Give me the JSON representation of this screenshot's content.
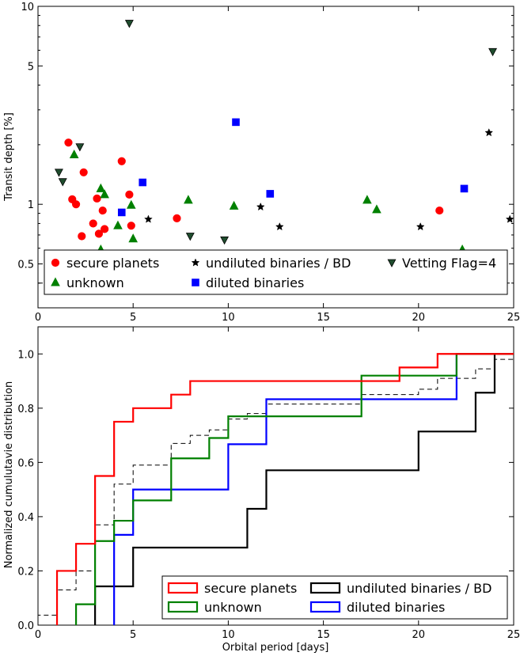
{
  "colors": {
    "secure": "#ff0000",
    "unknown": "#008000",
    "undiluted": "#000000",
    "diluted": "#0000ff",
    "vetting": "#1f4d2e"
  },
  "chart_data": [
    {
      "type": "scatter",
      "ylabel": "Transit depth [%]",
      "xlim": [
        0,
        25
      ],
      "ylim": [
        0.3,
        10
      ],
      "yscale": "log",
      "xticks": [
        0,
        5,
        10,
        15,
        20,
        25
      ],
      "yticks": [
        0.5,
        1,
        5,
        10
      ],
      "ytick_labels": [
        "0.5",
        "1",
        "5",
        "10"
      ],
      "reference_line": {
        "y": 0.4,
        "style": "dashed"
      },
      "legend_position": "bottom",
      "series": [
        {
          "name": "secure planets",
          "marker": "circle",
          "x": [
            1.6,
            1.8,
            1.7,
            2.0,
            2.3,
            2.4,
            2.9,
            3.1,
            3.2,
            3.4,
            3.5,
            4.4,
            4.8,
            4.9,
            4.9,
            5.4,
            7.3,
            8.5,
            19.2,
            21.1
          ],
          "y": [
            2.05,
            1.06,
            0.46,
            1.0,
            0.69,
            1.45,
            0.8,
            1.07,
            0.71,
            0.93,
            0.75,
            1.65,
            1.12,
            0.78,
            0.42,
            0.47,
            0.85,
            0.45,
            0.49,
            0.93
          ]
        },
        {
          "name": "unknown",
          "marker": "triangle-up",
          "x": [
            1.9,
            3.3,
            3.5,
            4.2,
            4.9,
            5.0,
            3.2,
            3.3,
            7.2,
            7.9,
            9.4,
            10.3,
            17.3,
            17.8,
            22.3
          ],
          "y": [
            1.78,
            1.2,
            1.12,
            0.78,
            0.99,
            0.67,
            0.41,
            0.59,
            0.39,
            1.05,
            0.38,
            0.98,
            1.05,
            0.94,
            0.59
          ]
        },
        {
          "name": "undiluted binaries / BD",
          "marker": "star",
          "x": [
            3.7,
            5.8,
            11.7,
            12.7,
            20.1,
            23.7,
            24.8
          ],
          "y": [
            0.39,
            0.84,
            0.97,
            0.77,
            0.77,
            2.3,
            0.84
          ]
        },
        {
          "name": "diluted binaries",
          "marker": "square",
          "x": [
            4.4,
            4.5,
            5.5,
            10.4,
            12.2,
            22.4
          ],
          "y": [
            0.91,
            0.44,
            1.29,
            2.6,
            1.13,
            1.2
          ]
        },
        {
          "name": "Vetting Flag=4",
          "marker": "triangle-down",
          "x": [
            1.1,
            1.3,
            1.0,
            2.2,
            4.8,
            8.0,
            9.8,
            23.9
          ],
          "y": [
            1.45,
            1.3,
            0.5,
            1.95,
            8.2,
            0.69,
            0.66,
            5.9
          ]
        }
      ]
    },
    {
      "type": "line",
      "step": true,
      "xlabel": "Orbital period [days]",
      "ylabel": "Normalized cumulutavie distribution",
      "xlim": [
        0,
        25
      ],
      "ylim": [
        0,
        1.1
      ],
      "xticks": [
        0,
        5,
        10,
        15,
        20,
        25
      ],
      "yticks": [
        0.0,
        0.2,
        0.4,
        0.6,
        0.8,
        1.0
      ],
      "ytick_labels": [
        "0.0",
        "0.2",
        "0.4",
        "0.6",
        "0.8",
        "1.0"
      ],
      "legend_position": "bottom-right",
      "series": [
        {
          "name": "secure planets",
          "x": [
            1,
            2,
            3,
            4,
            5,
            7,
            8,
            19,
            21,
            25
          ],
          "y": [
            0.2,
            0.3,
            0.55,
            0.75,
            0.8,
            0.85,
            0.9,
            0.95,
            1.0,
            1.0
          ]
        },
        {
          "name": "unknown",
          "x": [
            2,
            3,
            4,
            5,
            7,
            9,
            10,
            17,
            22,
            25
          ],
          "y": [
            0.077,
            0.31,
            0.385,
            0.46,
            0.615,
            0.69,
            0.77,
            0.92,
            1.0,
            1.0
          ]
        },
        {
          "name": "undiluted binaries / BD",
          "x": [
            3,
            5,
            11,
            12,
            20,
            23,
            24
          ],
          "y": [
            0.143,
            0.286,
            0.429,
            0.571,
            0.714,
            0.857,
            1.0
          ]
        },
        {
          "name": "diluted binaries",
          "x": [
            4,
            5,
            10,
            12,
            22,
            25
          ],
          "y": [
            0.333,
            0.5,
            0.667,
            0.833,
            1.0,
            1.0
          ]
        },
        {
          "name": "",
          "style": "dashed",
          "x": [
            0,
            1,
            2,
            3,
            4,
            5,
            7,
            8,
            9,
            10,
            11,
            12,
            17,
            20,
            21,
            23,
            24,
            25
          ],
          "y": [
            0.037,
            0.13,
            0.2,
            0.37,
            0.52,
            0.59,
            0.67,
            0.7,
            0.72,
            0.76,
            0.78,
            0.815,
            0.85,
            0.87,
            0.91,
            0.945,
            0.98,
            1.0
          ]
        }
      ]
    }
  ]
}
